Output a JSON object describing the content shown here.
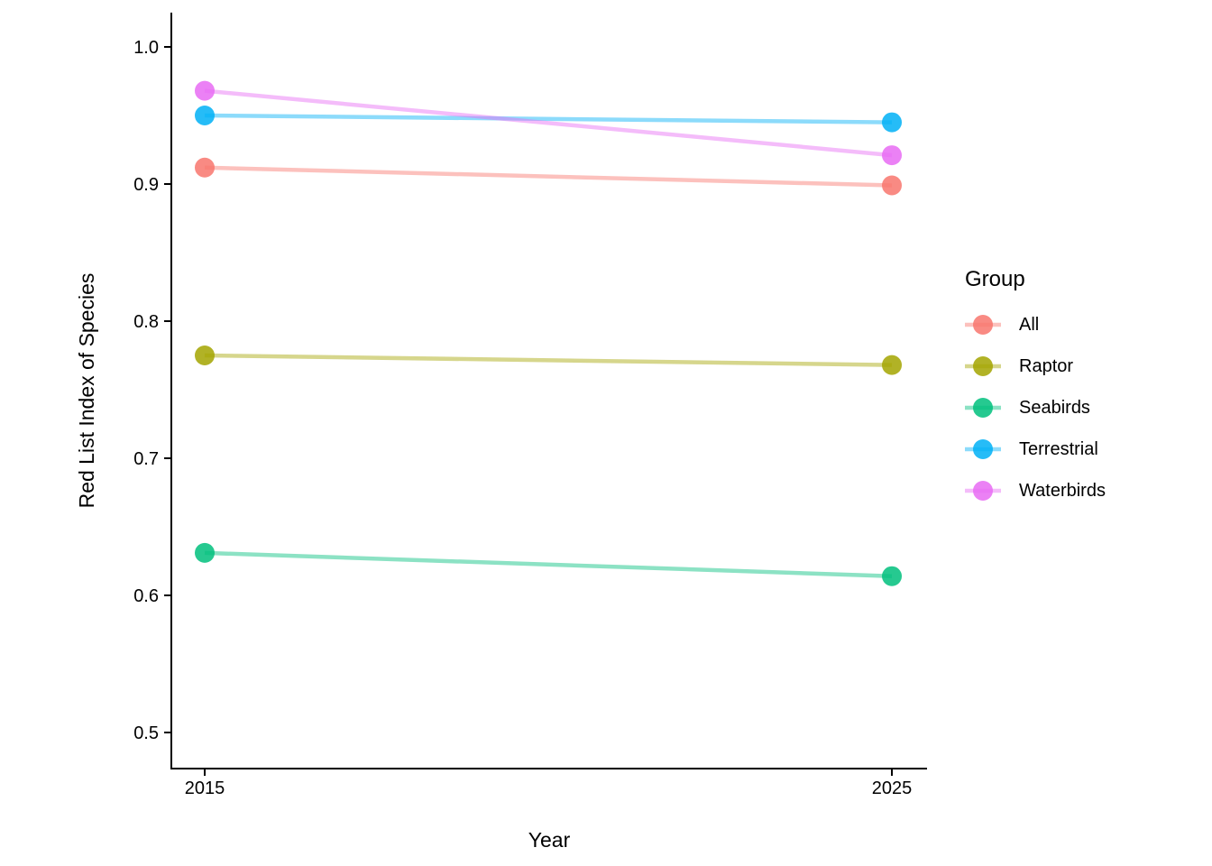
{
  "chart_data": {
    "type": "line",
    "title": "",
    "xlabel": "Year",
    "ylabel": "Red List Index of Species",
    "x": [
      2015,
      2025
    ],
    "x_tick_labels": [
      "2015",
      "2025"
    ],
    "y_ticks": [
      0.5,
      0.6,
      0.7,
      0.8,
      0.9,
      1.0
    ],
    "y_tick_labels": [
      "0.5",
      "0.6",
      "0.7",
      "0.8",
      "0.9",
      "1.0"
    ],
    "ylim": [
      0.5,
      1.0
    ],
    "grid": false,
    "legend_position": "right",
    "legend_title": "Group",
    "series": [
      {
        "name": "All",
        "color": "#F8766D",
        "values": [
          0.912,
          0.899
        ]
      },
      {
        "name": "Raptor",
        "color": "#A3A500",
        "values": [
          0.775,
          0.768
        ]
      },
      {
        "name": "Seabirds",
        "color": "#00BF7D",
        "values": [
          0.631,
          0.614
        ]
      },
      {
        "name": "Terrestrial",
        "color": "#00B0F6",
        "values": [
          0.95,
          0.945
        ]
      },
      {
        "name": "Waterbirds",
        "color": "#E76BF3",
        "values": [
          0.968,
          0.921
        ]
      }
    ],
    "style": {
      "axis_color": "#000000",
      "text_color": "#000000",
      "line_opacity": 0.45,
      "point_opacity": 0.85,
      "line_width": 4.5,
      "point_radius": 11
    }
  }
}
